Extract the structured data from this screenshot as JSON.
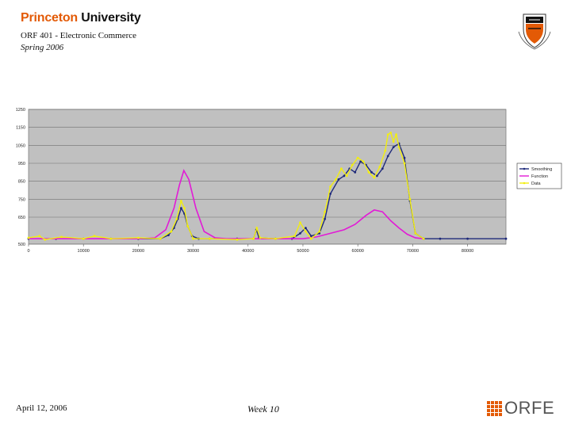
{
  "header": {
    "brand_first": "Princeton",
    "brand_second": "University",
    "course": "ORF 401 - Electronic Commerce",
    "term": "Spring 2006"
  },
  "footer": {
    "date": "April 12, 2006",
    "week": "Week 10",
    "logo_text": "ORFE"
  },
  "colors": {
    "brand_orange": "#e35a06",
    "plot_bg": "#c0c0c0",
    "smoothing": "#1f2a7a",
    "function": "#e21ad6",
    "data": "#f2ee10"
  },
  "chart_data": {
    "type": "line",
    "xlim": [
      0,
      87000
    ],
    "ylim": [
      500,
      1250
    ],
    "xticks": [
      0,
      10000,
      20000,
      30000,
      40000,
      50000,
      60000,
      70000,
      80000
    ],
    "yticks": [
      500,
      650,
      750,
      850,
      950,
      1050,
      1150,
      1250
    ],
    "grid": true,
    "legend_position": "right",
    "series": [
      {
        "name": "Smoothing",
        "x": [
          0,
          5000,
          10000,
          15000,
          20000,
          24000,
          25500,
          26500,
          27200,
          27800,
          28400,
          29000,
          29800,
          31000,
          33000,
          38000,
          41000,
          41500,
          42000,
          45000,
          48000,
          49500,
          50500,
          51500,
          53000,
          54000,
          55000,
          56500,
          57500,
          58500,
          59500,
          60500,
          61500,
          62500,
          63500,
          64500,
          65500,
          66500,
          67500,
          68500,
          69500,
          70500,
          72000,
          75000,
          80000,
          87000
        ],
        "y": [
          530,
          530,
          530,
          530,
          530,
          530,
          550,
          590,
          640,
          700,
          670,
          600,
          545,
          530,
          530,
          530,
          530,
          580,
          535,
          530,
          530,
          560,
          590,
          545,
          560,
          640,
          780,
          860,
          880,
          920,
          900,
          960,
          940,
          900,
          880,
          920,
          990,
          1040,
          1060,
          980,
          740,
          560,
          530,
          530,
          530,
          530
        ]
      },
      {
        "name": "Function",
        "x": [
          0,
          20000,
          23000,
          25000,
          26500,
          27500,
          28300,
          29200,
          30500,
          32000,
          34000,
          36000,
          45000,
          50000,
          52500,
          55000,
          57500,
          59500,
          61500,
          63000,
          64500,
          66000,
          67500,
          69000,
          70500,
          72000
        ],
        "y": [
          530,
          530,
          535,
          580,
          700,
          830,
          910,
          860,
          700,
          570,
          535,
          530,
          530,
          530,
          540,
          560,
          580,
          610,
          660,
          690,
          680,
          630,
          590,
          555,
          535,
          530
        ]
      },
      {
        "name": "Data",
        "x": [
          0,
          2000,
          3000,
          6000,
          10000,
          12000,
          15000,
          20000,
          24000,
          26000,
          27000,
          27800,
          28400,
          29000,
          30000,
          33000,
          38000,
          41000,
          41600,
          42200,
          45000,
          48500,
          49500,
          50500,
          51500,
          53000,
          54000,
          55000,
          56000,
          57000,
          58000,
          59000,
          60000,
          61000,
          62000,
          63000,
          64000,
          65000,
          65500,
          66000,
          66500,
          67000,
          67500,
          68500,
          69500,
          70500,
          72000
        ],
        "y": [
          535,
          545,
          525,
          540,
          530,
          545,
          530,
          535,
          530,
          570,
          640,
          740,
          700,
          600,
          530,
          530,
          525,
          530,
          590,
          535,
          530,
          545,
          620,
          570,
          530,
          570,
          680,
          820,
          860,
          920,
          880,
          940,
          980,
          960,
          900,
          870,
          930,
          1020,
          1110,
          1120,
          1070,
          1110,
          1040,
          950,
          750,
          560,
          530
        ]
      }
    ]
  }
}
